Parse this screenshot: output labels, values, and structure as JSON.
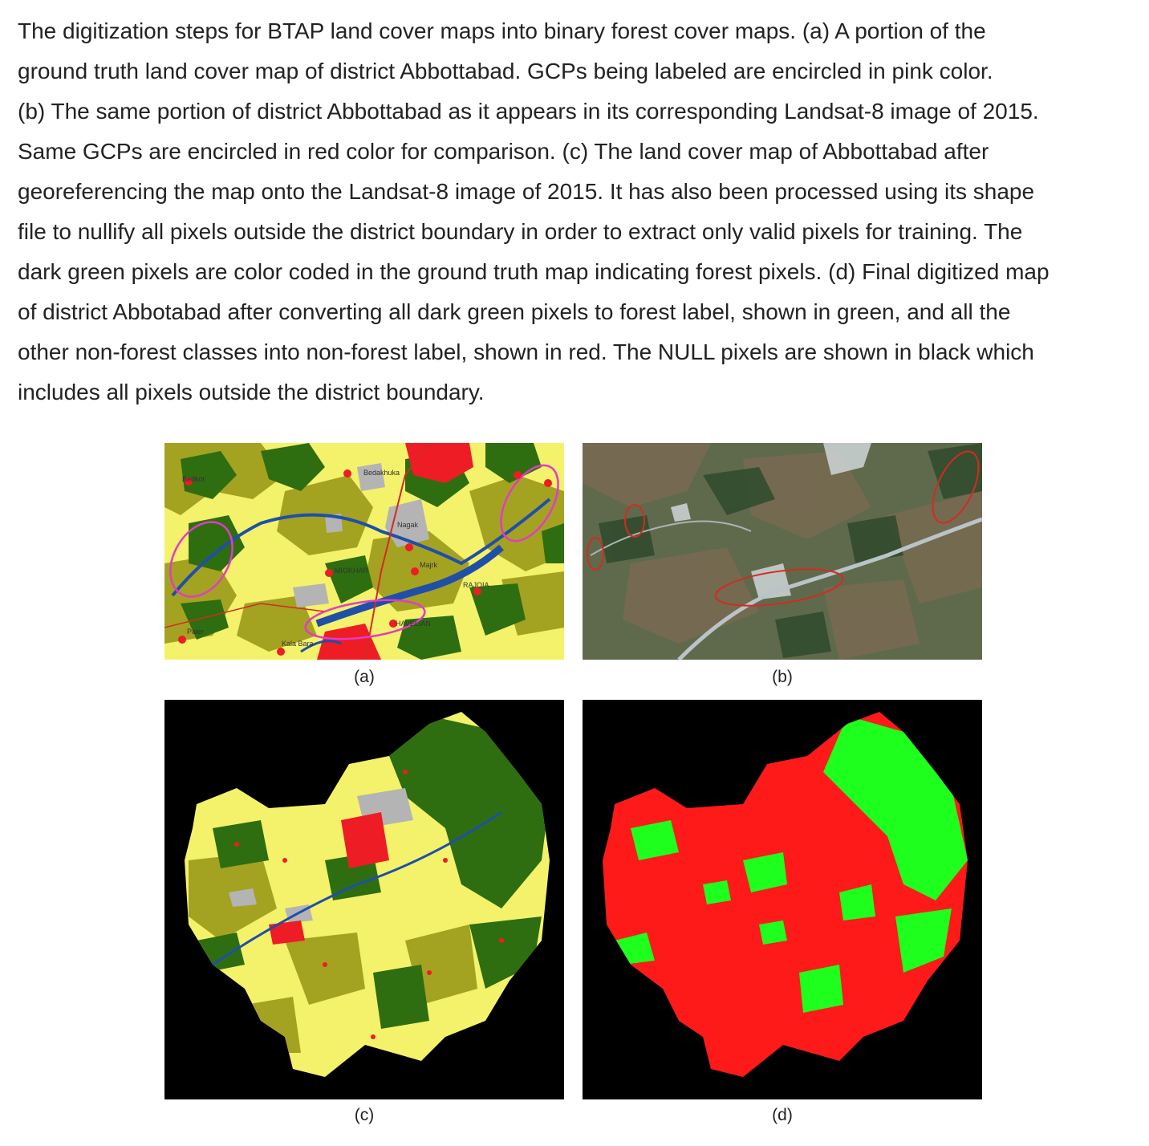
{
  "caption": {
    "lines": [
      "The digitization steps for BTAP land cover maps into binary forest cover maps. (a) A portion of the",
      "ground truth land cover map of district Abbottabad. GCPs being labeled are encircled in pink color.",
      "(b) The same portion of district Abbottabad as it appears in its corresponding Landsat-8 image of 2015.",
      "Same GCPs are encircled in red color for comparison. (c) The land cover map of Abbottabad after",
      "georeferencing the map onto the Landsat-8 image of 2015. It has also been processed using its shape",
      "file to nullify all pixels outside the district boundary in order to extract only valid pixels for training. The",
      "dark green pixels are color coded in the ground truth map indicating forest pixels. (d) Final digitized map",
      "of district Abbotabad after converting all dark green pixels to forest label, shown in green, and all the",
      "other non-forest classes into non-forest label, shown in red. The NULL pixels are shown in black which",
      "includes all pixels outside the district boundary."
    ]
  },
  "panels": {
    "a": {
      "label": "(a)",
      "place_names": [
        "Bedakhuka",
        "Nagak",
        "MIOKHAR",
        "Majrk",
        "RAJOIA",
        "HAVELIAN",
        "Kala Bara",
        "Bedkot",
        "Paler"
      ]
    },
    "b": {
      "label": "(b)"
    },
    "c": {
      "label": "(c)"
    },
    "d": {
      "label": "(d)"
    }
  },
  "colors": {
    "yellow_landcover": "#f4f26a",
    "olive_landcover": "#a4a221",
    "dark_green_forest": "#2e6e10",
    "settlement_red": "#ee1c25",
    "river_blue": "#1f4fa8",
    "gcp_pink": "#e23bc9",
    "gcp_red": "#d42a22",
    "forest_green": "#1eff1e",
    "nonforest_red": "#ff1a1a",
    "null_black": "#000000"
  }
}
